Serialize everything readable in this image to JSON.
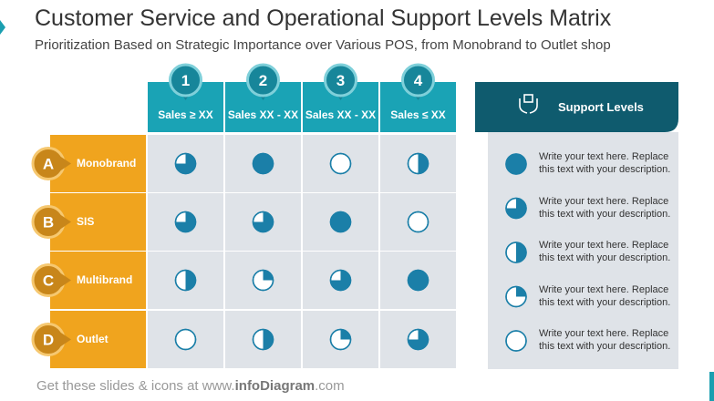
{
  "title": "Customer Service and Operational Support Levels Matrix",
  "subtitle": "Prioritization Based on Strategic Importance over Various POS, from Monobrand to Outlet shop",
  "columns": [
    {
      "number": "1",
      "label": "Sales ≥ XX"
    },
    {
      "number": "2",
      "label": "Sales XX - XX"
    },
    {
      "number": "3",
      "label": "Sales XX - XX"
    },
    {
      "number": "4",
      "label": "Sales ≤ XX"
    }
  ],
  "rows": [
    {
      "letter": "A",
      "label": "Monobrand",
      "levels": [
        0.75,
        1,
        0,
        0.5
      ]
    },
    {
      "letter": "B",
      "label": "SIS",
      "levels": [
        0.75,
        0.75,
        1,
        0
      ]
    },
    {
      "letter": "C",
      "label": "Multibrand",
      "levels": [
        0.5,
        0.25,
        0.75,
        1
      ]
    },
    {
      "letter": "D",
      "label": "Outlet",
      "levels": [
        0,
        0.5,
        0.25,
        0.75
      ]
    }
  ],
  "legend": {
    "title": "Support Levels",
    "items": [
      {
        "level": 1,
        "text": "Write your text here. Replace this text with your description."
      },
      {
        "level": 0.75,
        "text": "Write your text here. Replace this text with your description."
      },
      {
        "level": 0.5,
        "text": "Write your text here. Replace this text with your description."
      },
      {
        "level": 0.25,
        "text": "Write your text here. Replace this text with your description."
      },
      {
        "level": 0,
        "text": "Write your text here. Replace this text with your description."
      }
    ]
  },
  "footer": {
    "prefix": "Get these slides & icons at www.",
    "brand": "infoDiagram",
    "suffix": ".com"
  }
}
